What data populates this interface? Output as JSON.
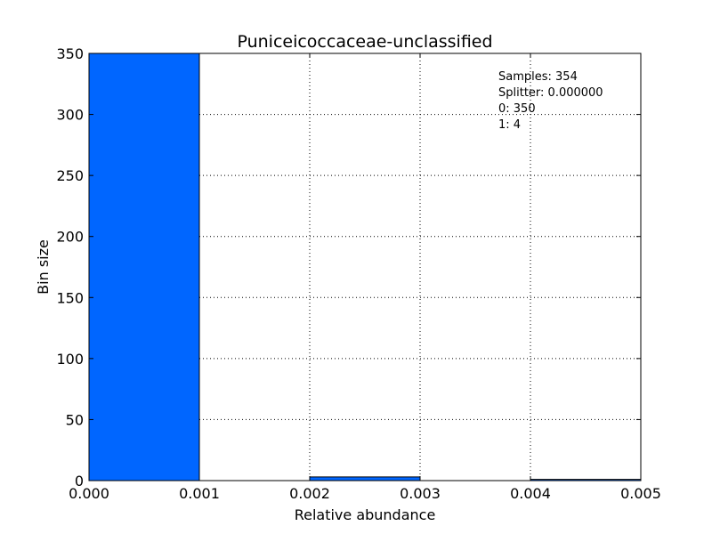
{
  "chart_data": {
    "type": "bar",
    "title": "Puniceicoccaceae-unclassified",
    "xlabel": "Relative abundance",
    "ylabel": "Bin size",
    "xlim": [
      0.0,
      0.005
    ],
    "ylim": [
      0,
      350
    ],
    "x_ticks": [
      "0.000",
      "0.001",
      "0.002",
      "0.003",
      "0.004",
      "0.005"
    ],
    "y_ticks": [
      "0",
      "50",
      "100",
      "150",
      "200",
      "250",
      "300",
      "350"
    ],
    "x_tick_values": [
      0.0,
      0.001,
      0.002,
      0.003,
      0.004,
      0.005
    ],
    "y_tick_values": [
      0,
      50,
      100,
      150,
      200,
      250,
      300,
      350
    ],
    "bins": [
      {
        "x0": 0.0,
        "x1": 0.001,
        "value": 350
      },
      {
        "x0": 0.001,
        "x1": 0.002,
        "value": 0
      },
      {
        "x0": 0.002,
        "x1": 0.003,
        "value": 3
      },
      {
        "x0": 0.003,
        "x1": 0.004,
        "value": 0
      },
      {
        "x0": 0.004,
        "x1": 0.005,
        "value": 1
      }
    ],
    "grid": true,
    "bar_color": "#0066ff",
    "annotations": [
      "Samples: 354",
      "Splitter: 0.000000",
      "0: 350",
      "1: 4"
    ]
  }
}
